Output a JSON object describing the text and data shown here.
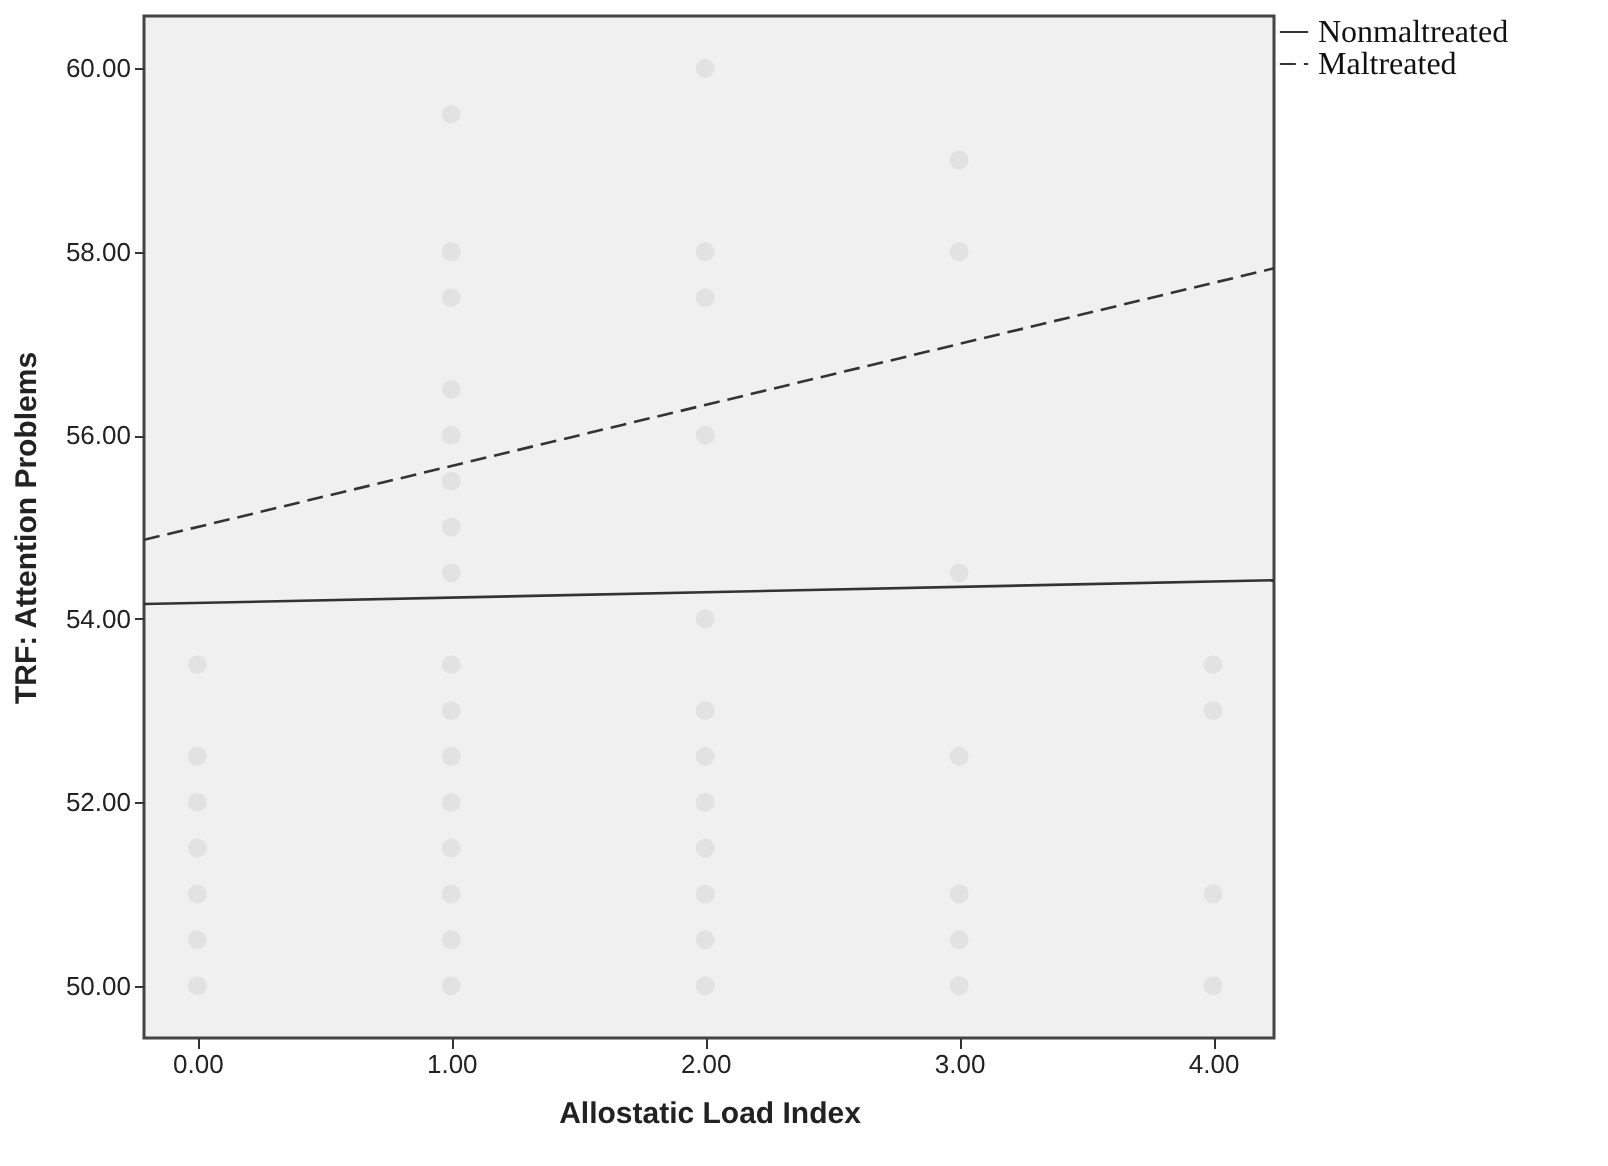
{
  "chart_data": {
    "type": "scatter",
    "xlabel": "Allostatic Load Index",
    "ylabel": "TRF: Attention Problems",
    "xlim": [
      -0.21,
      4.24
    ],
    "ylim": [
      49.43,
      60.57
    ],
    "xticks": [
      {
        "value": 0,
        "label": "0.00"
      },
      {
        "value": 1,
        "label": "1.00"
      },
      {
        "value": 2,
        "label": "2.00"
      },
      {
        "value": 3,
        "label": "3.00"
      },
      {
        "value": 4,
        "label": "4.00"
      }
    ],
    "yticks": [
      {
        "value": 50,
        "label": "50.00"
      },
      {
        "value": 52,
        "label": "52.00"
      },
      {
        "value": 54,
        "label": "54.00"
      },
      {
        "value": 56,
        "label": "56.00"
      },
      {
        "value": 58,
        "label": "58.00"
      },
      {
        "value": 60,
        "label": "60.00"
      }
    ],
    "grid": false,
    "legend": "top right",
    "series": [
      {
        "marker": "circle",
        "color": "#e2e2e2",
        "x": [
          0,
          0,
          0,
          0,
          0,
          0,
          0,
          1,
          1,
          1,
          1,
          1,
          1,
          1,
          1,
          1,
          1,
          1,
          1,
          1,
          1,
          1,
          1,
          2,
          2,
          2,
          2,
          2,
          2,
          2,
          2,
          2,
          2,
          2,
          2,
          3,
          3,
          3,
          3,
          3,
          3,
          3,
          4,
          4,
          4,
          4
        ],
        "values": [
          53.5,
          52.5,
          52,
          51.5,
          51,
          50.5,
          50,
          59.5,
          58,
          57.5,
          56.5,
          56,
          55.5,
          55,
          54.5,
          53.5,
          53,
          52.5,
          52,
          51.5,
          51,
          50.5,
          50,
          60,
          58,
          57.5,
          56,
          54,
          53,
          52.5,
          52,
          51.5,
          51,
          50.5,
          50,
          59,
          58,
          54.5,
          52.5,
          51,
          50.5,
          50,
          53.5,
          53,
          51,
          50
        ]
      },
      {
        "type": "line",
        "name": "Nonmaltreated",
        "color": "#333333",
        "line_style": "solid",
        "x": [
          -0.21,
          4.24
        ],
        "values": [
          54.16,
          54.42
        ]
      },
      {
        "type": "line",
        "name": "Maltreated",
        "color": "#333333",
        "line_style": "dashed",
        "x": [
          -0.21,
          4.24
        ],
        "values": [
          54.86,
          57.82
        ]
      }
    ]
  }
}
